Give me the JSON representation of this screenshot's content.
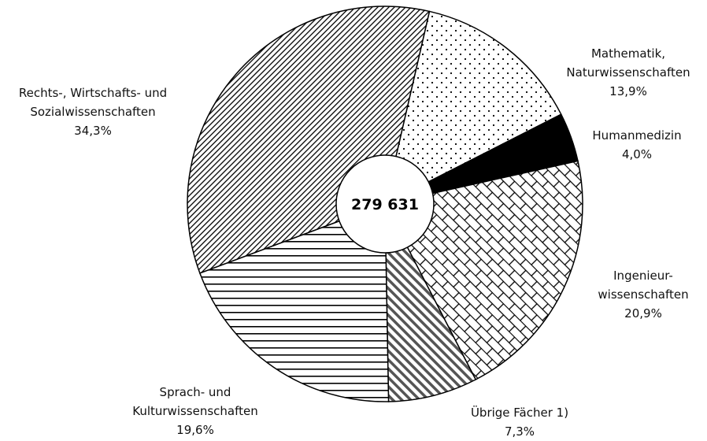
{
  "chart_data": {
    "type": "pie",
    "categories": [
      "Mathematik,\nNaturwissenschaften",
      "Humanmedizin",
      "Ingenieur-\nwissenschaften",
      "Übrige Fächer 1)",
      "Sprach- und\nKulturwissenschaften",
      "Rechts-, Wirtschafts- und\nSozialwissenschaften"
    ],
    "values": [
      13.9,
      4.0,
      20.9,
      7.3,
      19.6,
      34.3
    ],
    "value_labels": [
      "13,9%",
      "4,0%",
      "20,9%",
      "7,3%",
      "19,6%",
      "34,3%"
    ],
    "patterns": [
      "dots",
      "solid",
      "bricks",
      "backslash",
      "horizontal",
      "diagonal"
    ],
    "center_label": "279 631"
  }
}
